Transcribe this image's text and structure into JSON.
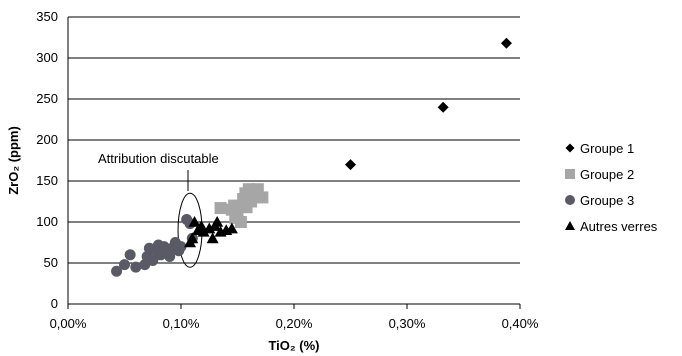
{
  "chart_data": {
    "type": "scatter",
    "xlabel": "TiO₂ (%)",
    "ylabel": "ZrO₂ (ppm)",
    "xlim": [
      0,
      0.4
    ],
    "ylim": [
      0,
      350
    ],
    "x_ticks": [
      "0,00%",
      "0,10%",
      "0,20%",
      "0,30%",
      "0,40%"
    ],
    "y_ticks": [
      "0",
      "50",
      "100",
      "150",
      "200",
      "250",
      "300",
      "350"
    ],
    "grid": "horizontal",
    "legend_position": "right",
    "annotation": "Attribution discutable",
    "series": [
      {
        "name": "Groupe 1",
        "marker": "diamond",
        "color": "#000000",
        "points": [
          [
            0.25,
            170
          ],
          [
            0.332,
            240
          ],
          [
            0.388,
            318
          ]
        ]
      },
      {
        "name": "Groupe 2",
        "marker": "square",
        "color": "#a6a6a6",
        "points": [
          [
            0.135,
            117
          ],
          [
            0.145,
            115
          ],
          [
            0.148,
            105
          ],
          [
            0.15,
            112
          ],
          [
            0.152,
            120
          ],
          [
            0.155,
            128
          ],
          [
            0.157,
            135
          ],
          [
            0.16,
            140
          ],
          [
            0.162,
            125
          ],
          [
            0.165,
            135
          ],
          [
            0.168,
            140
          ],
          [
            0.172,
            130
          ],
          [
            0.153,
            100
          ],
          [
            0.158,
            118
          ],
          [
            0.147,
            120
          ]
        ]
      },
      {
        "name": "Groupe 3",
        "marker": "circle",
        "color": "#5a5a66",
        "points": [
          [
            0.043,
            40
          ],
          [
            0.05,
            48
          ],
          [
            0.055,
            60
          ],
          [
            0.06,
            45
          ],
          [
            0.068,
            48
          ],
          [
            0.07,
            58
          ],
          [
            0.072,
            68
          ],
          [
            0.075,
            53
          ],
          [
            0.078,
            65
          ],
          [
            0.08,
            72
          ],
          [
            0.082,
            60
          ],
          [
            0.085,
            70
          ],
          [
            0.088,
            65
          ],
          [
            0.09,
            58
          ],
          [
            0.092,
            68
          ],
          [
            0.095,
            75
          ],
          [
            0.098,
            65
          ],
          [
            0.1,
            70
          ],
          [
            0.105,
            103
          ],
          [
            0.108,
            98
          ],
          [
            0.11,
            80
          ]
        ]
      },
      {
        "name": "Autres verres",
        "marker": "triangle",
        "color": "#000000",
        "points": [
          [
            0.108,
            75
          ],
          [
            0.11,
            80
          ],
          [
            0.112,
            100
          ],
          [
            0.115,
            90
          ],
          [
            0.118,
            95
          ],
          [
            0.12,
            88
          ],
          [
            0.125,
            92
          ],
          [
            0.128,
            80
          ],
          [
            0.13,
            95
          ],
          [
            0.132,
            100
          ],
          [
            0.135,
            88
          ],
          [
            0.14,
            90
          ],
          [
            0.145,
            92
          ]
        ]
      }
    ]
  }
}
